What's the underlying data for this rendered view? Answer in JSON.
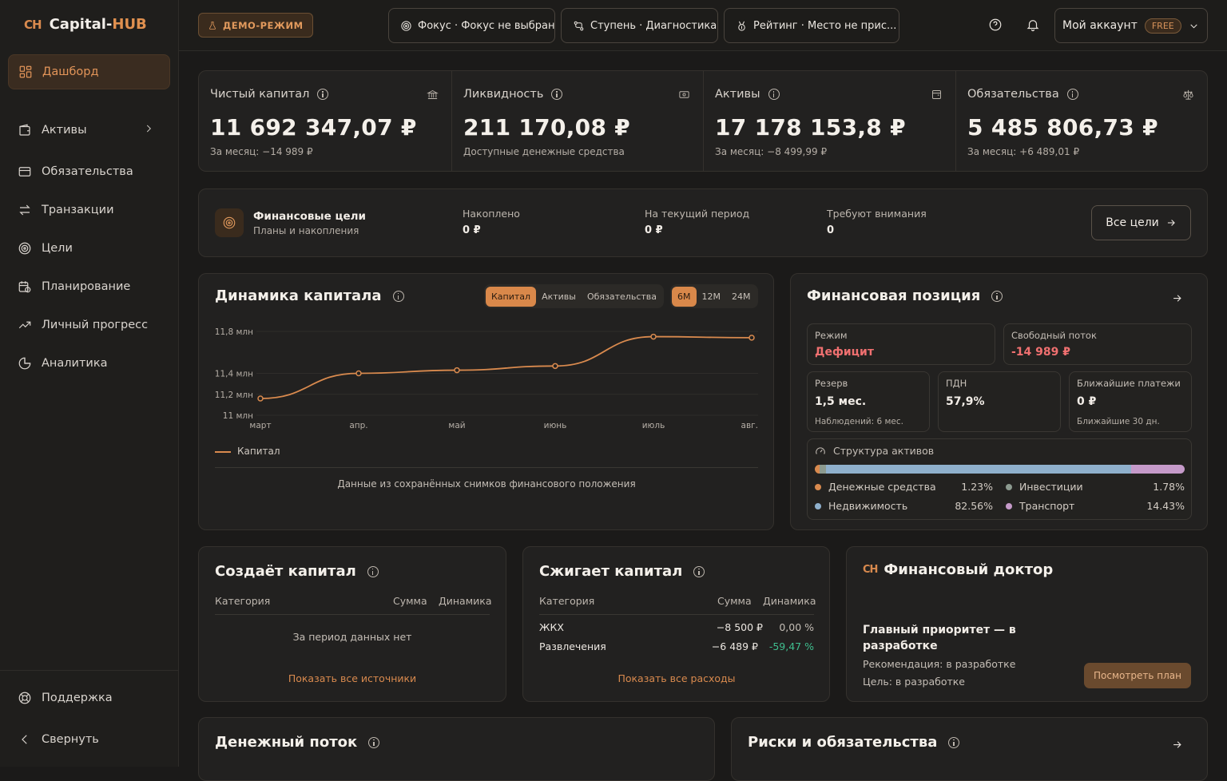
{
  "app": {
    "logo_mark": "CH",
    "logo_name": "Capital-",
    "logo_hub": "HUB"
  },
  "sidebar": {
    "items": [
      {
        "label": "Дашборд",
        "icon": "dashboard-icon"
      },
      {
        "label": "Активы",
        "icon": "wallet-icon"
      },
      {
        "label": "Обязательства",
        "icon": "card-icon"
      },
      {
        "label": "Транзакции",
        "icon": "arrows-icon"
      },
      {
        "label": "Цели",
        "icon": "target-icon"
      },
      {
        "label": "Планирование",
        "icon": "calendar-icon"
      },
      {
        "label": "Личный прогресс",
        "icon": "trend-icon"
      },
      {
        "label": "Аналитика",
        "icon": "pie-icon"
      }
    ],
    "support": "Поддержка",
    "collapse": "Свернуть"
  },
  "topbar": {
    "demo": "ДЕМО-РЕЖИМ",
    "focus": "Фокус · Фокус не выбран",
    "stage": "Ступень · Диагностика",
    "rating": "Рейтинг · Место не прис...",
    "account": "Мой аккаунт",
    "plan": "FREE"
  },
  "kpis": [
    {
      "label": "Чистый капитал",
      "value": "11 692 347,07 ₽",
      "sub": "За месяц: −14 989 ₽",
      "icon": "bank-icon"
    },
    {
      "label": "Ликвидность",
      "value": "211 170,08 ₽",
      "sub": "Доступные денежные средства",
      "icon": "cash-icon"
    },
    {
      "label": "Активы",
      "value": "17 178 153,8 ₽",
      "sub": "За месяц: −8 499,99 ₽",
      "icon": "wallet-icon"
    },
    {
      "label": "Обязательства",
      "value": "5 485 806,73 ₽",
      "sub": "За месяц: +6 489,01 ₽",
      "icon": "scales-icon"
    }
  ],
  "goals": {
    "title": "Финансовые цели",
    "subtitle": "Планы и накопления",
    "stats": [
      {
        "label": "Накоплено",
        "value": "0 ₽"
      },
      {
        "label": "На текущий период",
        "value": "0 ₽"
      },
      {
        "label": "Требуют внимания",
        "value": "0"
      }
    ],
    "button": "Все цели"
  },
  "capital": {
    "title": "Динамика капитала",
    "tabs": [
      "Капитал",
      "Активы",
      "Обязательства"
    ],
    "periods": [
      "6М",
      "12М",
      "24М"
    ],
    "legend": "Капитал",
    "note": "Данные из сохранённых снимков финансового положения"
  },
  "chart_data": {
    "type": "line",
    "x": [
      "март",
      "апр.",
      "май",
      "июнь",
      "июль",
      "авг."
    ],
    "series": [
      {
        "name": "Капитал",
        "values": [
          11.16,
          11.4,
          11.43,
          11.47,
          11.75,
          11.74
        ]
      }
    ],
    "yticks": [
      "11,8 млн",
      "11,4 млн",
      "11,2 млн",
      "11 млн"
    ],
    "ytick_values": [
      11.8,
      11.4,
      11.2,
      11.0
    ],
    "ylim": [
      11.0,
      11.8
    ],
    "color": "#d98a4e"
  },
  "position": {
    "title": "Финансовая позиция",
    "mode_label": "Режим",
    "mode_value": "Дефицит",
    "flow_label": "Свободный поток",
    "flow_value": "-14 989 ₽",
    "reserve_label": "Резерв",
    "reserve_value": "1,5 мес.",
    "reserve_sub": "Наблюдений: 6 мес.",
    "pdn_label": "ПДН",
    "pdn_value": "57,9%",
    "pay_label": "Ближайшие платежи",
    "pay_value": "0 ₽",
    "pay_sub": "Ближайшие 30 дн.",
    "struct_title": "Структура активов",
    "structure": [
      {
        "name": "Денежные средства",
        "pct": "1.23%",
        "share": 1.23,
        "color": "#d98a4e"
      },
      {
        "name": "Инвестиции",
        "pct": "1.78%",
        "share": 1.78,
        "color": "#8c9a8f"
      },
      {
        "name": "Недвижимость",
        "pct": "82.56%",
        "share": 82.56,
        "color": "#8fb0cc"
      },
      {
        "name": "Транспорт",
        "pct": "14.43%",
        "share": 14.43,
        "color": "#c59ac9"
      }
    ]
  },
  "creates": {
    "title": "Создаёт капитал",
    "cols": [
      "Категория",
      "Сумма",
      "Динамика"
    ],
    "empty": "За период данных нет",
    "link": "Показать все источники"
  },
  "burns": {
    "title": "Сжигает капитал",
    "cols": [
      "Категория",
      "Сумма",
      "Динамика"
    ],
    "rows": [
      {
        "cat": "ЖКХ",
        "sum": "−8 500 ₽",
        "dyn": "0,00 %"
      },
      {
        "cat": "Развлечения",
        "sum": "−6 489 ₽",
        "dyn": "-59,47 %"
      }
    ],
    "link": "Показать все расходы"
  },
  "doctor": {
    "mark": "CH",
    "title": "Финансовый доктор",
    "headline": "Главный приоритет — в разработке",
    "rec": "Рекомендация: в разработке",
    "goal": "Цель: в разработке",
    "button": "Посмотреть план"
  },
  "cashflow": {
    "title": "Денежный поток"
  },
  "risks": {
    "title": "Риски и обязательства"
  },
  "colors": {
    "accent": "#d98a4e",
    "negative": "#f07070",
    "positive": "#3fbf8f"
  }
}
